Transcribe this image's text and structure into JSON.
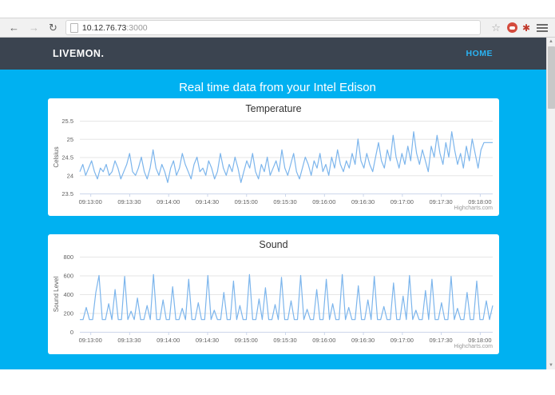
{
  "browser": {
    "url_host": "10.12.76.73",
    "url_port": ":3000",
    "icons": {
      "back": "←",
      "forward": "→",
      "refresh": "↻",
      "star": "☆",
      "extension2": "✱",
      "scroll_up": "▲",
      "scroll_down": "▼"
    }
  },
  "navbar": {
    "brand": "LIVEMON.",
    "links": [
      {
        "label": "HOME"
      }
    ]
  },
  "hero": {
    "title": "Real time data from your Intel Edison"
  },
  "colors": {
    "accent_background": "#00b1f1",
    "navbar_background": "#3b4450",
    "nav_link": "#2ab3f3",
    "series_line": "#7cb5ec",
    "grid_line": "#e6e6e6",
    "axis_line": "#ccd6eb",
    "tick_label": "#606060",
    "chart_title": "#333333",
    "credits": "#999999"
  },
  "chart_data": [
    {
      "type": "line",
      "title": "Temperature",
      "ylabel": "Celsius",
      "xlabel": "",
      "ylim": [
        23.5,
        25.5
      ],
      "yticks": [
        23.5,
        24,
        24.5,
        25,
        25.5
      ],
      "ytick_labels": [
        "23.5",
        "24",
        "24.5",
        "25",
        "25.5"
      ],
      "grid": true,
      "legend": "none",
      "credits": "Highcharts.com",
      "categories": [
        "09:13:00",
        "09:13:30",
        "09:14:00",
        "09:14:30",
        "09:15:00",
        "09:15:30",
        "09:16:00",
        "09:16:30",
        "09:17:00",
        "09:17:30",
        "09:18:00"
      ],
      "values": [
        24.1,
        24.3,
        24.0,
        24.2,
        24.4,
        24.1,
        23.9,
        24.2,
        24.1,
        24.3,
        24.0,
        24.1,
        24.4,
        24.2,
        23.9,
        24.1,
        24.3,
        24.6,
        24.1,
        24.0,
        24.2,
        24.5,
        24.1,
        23.9,
        24.2,
        24.7,
        24.2,
        24.0,
        24.3,
        24.1,
        23.8,
        24.2,
        24.4,
        24.0,
        24.2,
        24.6,
        24.3,
        24.1,
        23.9,
        24.3,
        24.5,
        24.1,
        24.2,
        24.0,
        24.4,
        24.2,
        23.9,
        24.1,
        24.6,
        24.2,
        24.0,
        24.3,
        24.1,
        24.5,
        24.2,
        23.8,
        24.1,
        24.4,
        24.2,
        24.6,
        24.1,
        23.9,
        24.3,
        24.1,
        24.5,
        24.0,
        24.2,
        24.4,
        24.1,
        24.7,
        24.2,
        24.0,
        24.3,
        24.6,
        24.1,
        23.9,
        24.2,
        24.5,
        24.3,
        24.0,
        24.4,
        24.2,
        24.6,
        24.1,
        24.3,
        24.0,
        24.5,
        24.2,
        24.7,
        24.3,
        24.1,
        24.4,
        24.2,
        24.6,
        24.3,
        25.0,
        24.4,
        24.2,
        24.6,
        24.3,
        24.1,
        24.5,
        24.9,
        24.4,
        24.2,
        24.7,
        24.4,
        25.1,
        24.5,
        24.2,
        24.6,
        24.3,
        24.8,
        24.4,
        25.2,
        24.6,
        24.3,
        24.7,
        24.4,
        24.1,
        24.8,
        24.5,
        25.1,
        24.6,
        24.3,
        24.9,
        24.5,
        25.2,
        24.7,
        24.3,
        24.6,
        24.2,
        24.8,
        24.4,
        25.0,
        24.6,
        24.2,
        24.7,
        24.9,
        24.9,
        24.9,
        24.9
      ]
    },
    {
      "type": "line",
      "title": "Sound",
      "ylabel": "Sound Level",
      "xlabel": "",
      "ylim": [
        0,
        800
      ],
      "yticks": [
        0,
        200,
        400,
        600,
        800
      ],
      "ytick_labels": [
        "0",
        "200",
        "400",
        "600",
        "800"
      ],
      "grid": true,
      "legend": "none",
      "credits": "Highcharts.com",
      "categories": [
        "09:13:00",
        "09:13:30",
        "09:14:00",
        "09:14:30",
        "09:15:00",
        "09:15:30",
        "09:16:00",
        "09:16:30",
        "09:17:00",
        "09:17:30",
        "09:18:00"
      ],
      "values": [
        130,
        130,
        260,
        130,
        130,
        420,
        600,
        130,
        130,
        300,
        130,
        450,
        130,
        130,
        590,
        130,
        220,
        130,
        360,
        130,
        130,
        280,
        130,
        610,
        130,
        130,
        340,
        130,
        130,
        480,
        130,
        130,
        250,
        130,
        560,
        130,
        130,
        310,
        130,
        130,
        600,
        130,
        230,
        130,
        130,
        420,
        130,
        130,
        540,
        130,
        280,
        130,
        130,
        610,
        130,
        130,
        350,
        130,
        470,
        130,
        130,
        290,
        130,
        580,
        130,
        130,
        330,
        130,
        130,
        600,
        130,
        240,
        130,
        130,
        450,
        130,
        130,
        560,
        130,
        300,
        130,
        130,
        610,
        130,
        260,
        130,
        130,
        490,
        130,
        130,
        340,
        130,
        590,
        130,
        130,
        270,
        130,
        130,
        520,
        130,
        130,
        380,
        130,
        600,
        130,
        230,
        130,
        130,
        440,
        130,
        560,
        130,
        130,
        310,
        130,
        130,
        590,
        130,
        250,
        130,
        130,
        420,
        130,
        130,
        540,
        130,
        130,
        330,
        130,
        280
      ]
    }
  ]
}
